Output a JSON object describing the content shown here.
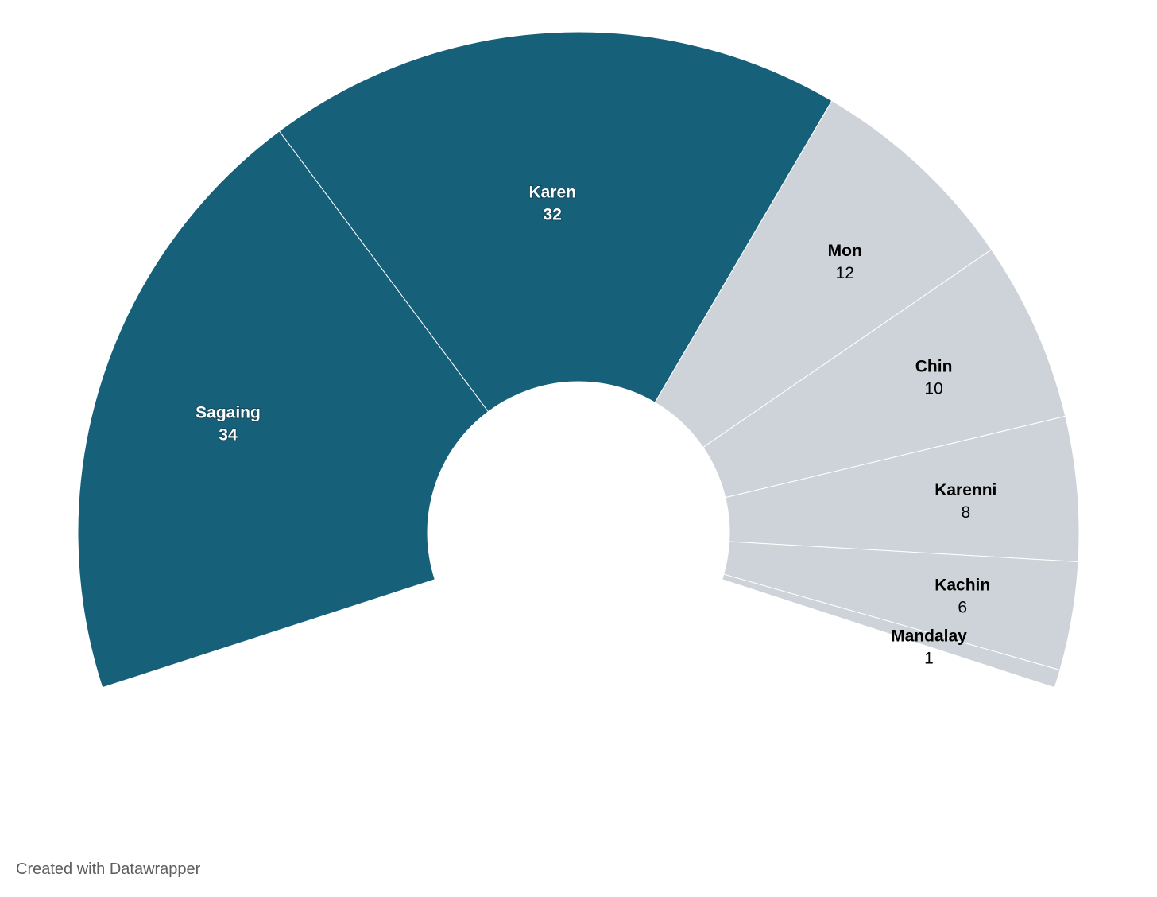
{
  "chart_data": {
    "type": "pie",
    "subtype": "partial-donut",
    "categories": [
      "Sagaing",
      "Karen",
      "Mon",
      "Chin",
      "Karenni",
      "Kachin",
      "Mandalay"
    ],
    "values": [
      34,
      32,
      12,
      10,
      8,
      6,
      1
    ],
    "colors": [
      "#17607a",
      "#17607a",
      "#cdd3d8",
      "#cdd3d8",
      "#cdd3d8",
      "#cdd3d8",
      "#cdd3d8"
    ],
    "label_styles": [
      "dark",
      "dark",
      "light",
      "light",
      "light",
      "light",
      "light"
    ]
  },
  "footer": {
    "credit": "Created with Datawrapper"
  }
}
